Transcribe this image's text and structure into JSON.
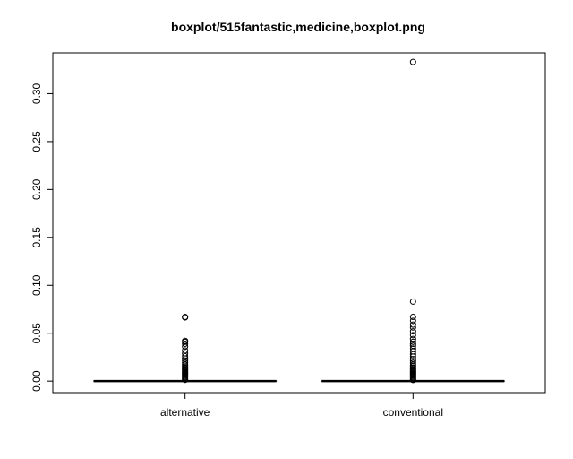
{
  "chart_data": {
    "type": "boxplot",
    "title": "boxplot/515fantastic,medicine,boxplot.png",
    "xlabel": "",
    "ylabel": "",
    "ylim": [
      -0.012,
      0.3425
    ],
    "yticks": [
      0.0,
      0.05,
      0.1,
      0.15,
      0.2,
      0.25,
      0.3
    ],
    "ytick_labels": [
      "0.00",
      "0.05",
      "0.10",
      "0.15",
      "0.20",
      "0.25",
      "0.30"
    ],
    "categories": [
      "alternative",
      "conventional"
    ],
    "boxes": [
      {
        "category": "alternative",
        "min": 0,
        "q1": 0,
        "median": 0,
        "q3": 0,
        "max": 0,
        "outliers": [
          0.0013,
          0.0025,
          0.0035,
          0.0045,
          0.0055,
          0.0065,
          0.0075,
          0.0085,
          0.0095,
          0.0105,
          0.0115,
          0.0125,
          0.0135,
          0.0145,
          0.016,
          0.0175,
          0.0195,
          0.0215,
          0.0235,
          0.026,
          0.029,
          0.032,
          0.036,
          0.039,
          0.041,
          0.042,
          0.0665,
          0.067
        ]
      },
      {
        "category": "conventional",
        "min": 0,
        "q1": 0,
        "median": 0,
        "q3": 0,
        "max": 0,
        "outliers": [
          0.0012,
          0.002,
          0.003,
          0.004,
          0.005,
          0.006,
          0.007,
          0.008,
          0.009,
          0.01,
          0.011,
          0.012,
          0.013,
          0.014,
          0.0155,
          0.017,
          0.019,
          0.021,
          0.023,
          0.0255,
          0.028,
          0.031,
          0.034,
          0.037,
          0.039,
          0.041,
          0.044,
          0.048,
          0.052,
          0.056,
          0.059,
          0.063,
          0.067,
          0.083,
          0.333
        ]
      }
    ],
    "grid": false,
    "legend": "none"
  },
  "colors": {
    "axis": "#000000",
    "box": "#000000",
    "outlier_stroke": "#000000",
    "background": "#ffffff"
  }
}
